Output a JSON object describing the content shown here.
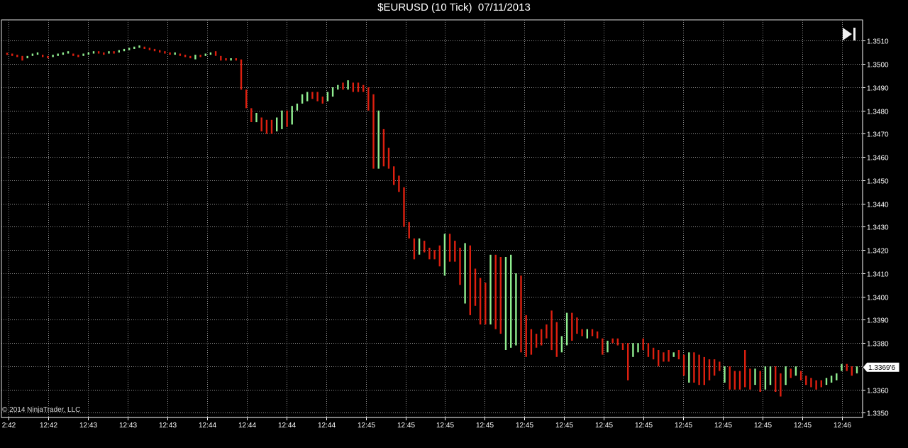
{
  "title": "$EURUSD (10 Tick)  07/11/2013",
  "copyright": "© 2014 NinjaTrader, LLC",
  "last_price_label": "1.3369'6",
  "colors": {
    "up": "#90ee90",
    "down": "#dd1f0f",
    "grid": "#c8c8c8",
    "axis": "#ffffff",
    "background": "#000000"
  },
  "icons": {
    "navigate": "scroll-to-end-icon"
  },
  "chart_data": {
    "type": "bar",
    "style": "OHLC range bars",
    "title": "$EURUSD (10 Tick)  07/11/2013",
    "ylim": [
      1.3348,
      1.3519
    ],
    "y_ticks": [
      "1.3350",
      "1.3360",
      "1.3370",
      "1.3380",
      "1.3390",
      "1.3400",
      "1.3410",
      "1.3420",
      "1.3430",
      "1.3440",
      "1.3450",
      "1.3460",
      "1.3470",
      "1.3480",
      "1.3490",
      "1.3500",
      "1.3510"
    ],
    "x_ticks": [
      "2:42",
      "12:42",
      "12:43",
      "12:43",
      "12:43",
      "12:44",
      "12:44",
      "12:44",
      "12:44",
      "12:45",
      "12:45",
      "12:45",
      "12:45",
      "12:45",
      "12:45",
      "12:45",
      "12:45",
      "12:45",
      "12:45",
      "12:45",
      "12:45",
      "12:46"
    ],
    "grid": true,
    "last_price": 1.33696,
    "bars": [
      {
        "low": 1.3504,
        "high": 1.35048,
        "dir": "down"
      },
      {
        "low": 1.35035,
        "high": 1.35045,
        "dir": "down"
      },
      {
        "low": 1.3503,
        "high": 1.3504,
        "dir": "down"
      },
      {
        "low": 1.35015,
        "high": 1.35035,
        "dir": "down"
      },
      {
        "low": 1.35025,
        "high": 1.35035,
        "dir": "up"
      },
      {
        "low": 1.35035,
        "high": 1.35045,
        "dir": "up"
      },
      {
        "low": 1.3504,
        "high": 1.3505,
        "dir": "up"
      },
      {
        "low": 1.3503,
        "high": 1.3504,
        "dir": "down"
      },
      {
        "low": 1.35025,
        "high": 1.35035,
        "dir": "down"
      },
      {
        "low": 1.3503,
        "high": 1.3504,
        "dir": "up"
      },
      {
        "low": 1.35035,
        "high": 1.35045,
        "dir": "up"
      },
      {
        "low": 1.3504,
        "high": 1.3505,
        "dir": "up"
      },
      {
        "low": 1.35045,
        "high": 1.35055,
        "dir": "up"
      },
      {
        "low": 1.35035,
        "high": 1.35045,
        "dir": "down"
      },
      {
        "low": 1.3503,
        "high": 1.3504,
        "dir": "down"
      },
      {
        "low": 1.35035,
        "high": 1.35045,
        "dir": "up"
      },
      {
        "low": 1.3504,
        "high": 1.3505,
        "dir": "up"
      },
      {
        "low": 1.35045,
        "high": 1.35055,
        "dir": "up"
      },
      {
        "low": 1.35045,
        "high": 1.35055,
        "dir": "down"
      },
      {
        "low": 1.3504,
        "high": 1.3505,
        "dir": "down"
      },
      {
        "low": 1.35045,
        "high": 1.35055,
        "dir": "up"
      },
      {
        "low": 1.35045,
        "high": 1.35055,
        "dir": "down"
      },
      {
        "low": 1.3505,
        "high": 1.3506,
        "dir": "up"
      },
      {
        "low": 1.35055,
        "high": 1.35065,
        "dir": "up"
      },
      {
        "low": 1.3506,
        "high": 1.3507,
        "dir": "up"
      },
      {
        "low": 1.35065,
        "high": 1.35075,
        "dir": "up"
      },
      {
        "low": 1.3507,
        "high": 1.3508,
        "dir": "up"
      },
      {
        "low": 1.35065,
        "high": 1.35075,
        "dir": "down"
      },
      {
        "low": 1.3506,
        "high": 1.3507,
        "dir": "down"
      },
      {
        "low": 1.35055,
        "high": 1.35065,
        "dir": "down"
      },
      {
        "low": 1.3505,
        "high": 1.3506,
        "dir": "down"
      },
      {
        "low": 1.35045,
        "high": 1.35055,
        "dir": "down"
      },
      {
        "low": 1.3504,
        "high": 1.3505,
        "dir": "down"
      },
      {
        "low": 1.3504,
        "high": 1.3505,
        "dir": "up"
      },
      {
        "low": 1.35035,
        "high": 1.35045,
        "dir": "down"
      },
      {
        "low": 1.3503,
        "high": 1.3504,
        "dir": "down"
      },
      {
        "low": 1.35025,
        "high": 1.35035,
        "dir": "down"
      },
      {
        "low": 1.3502,
        "high": 1.3504,
        "dir": "up"
      },
      {
        "low": 1.3503,
        "high": 1.3504,
        "dir": "down"
      },
      {
        "low": 1.35035,
        "high": 1.35045,
        "dir": "up"
      },
      {
        "low": 1.3504,
        "high": 1.3505,
        "dir": "up"
      },
      {
        "low": 1.35035,
        "high": 1.35055,
        "dir": "down"
      },
      {
        "low": 1.35015,
        "high": 1.35035,
        "dir": "down"
      },
      {
        "low": 1.35015,
        "high": 1.35025,
        "dir": "down"
      },
      {
        "low": 1.35015,
        "high": 1.35025,
        "dir": "up"
      },
      {
        "low": 1.35015,
        "high": 1.35025,
        "dir": "down"
      },
      {
        "low": 1.3489,
        "high": 1.3502,
        "dir": "down"
      },
      {
        "low": 1.3481,
        "high": 1.3489,
        "dir": "down"
      },
      {
        "low": 1.3475,
        "high": 1.3481,
        "dir": "down"
      },
      {
        "low": 1.3475,
        "high": 1.3479,
        "dir": "up"
      },
      {
        "low": 1.3471,
        "high": 1.3477,
        "dir": "down"
      },
      {
        "low": 1.347,
        "high": 1.3476,
        "dir": "down"
      },
      {
        "low": 1.347,
        "high": 1.3476,
        "dir": "down"
      },
      {
        "low": 1.3471,
        "high": 1.3477,
        "dir": "up"
      },
      {
        "low": 1.3472,
        "high": 1.348,
        "dir": "up"
      },
      {
        "low": 1.3473,
        "high": 1.348,
        "dir": "down"
      },
      {
        "low": 1.3474,
        "high": 1.3482,
        "dir": "up"
      },
      {
        "low": 1.348,
        "high": 1.3483,
        "dir": "up"
      },
      {
        "low": 1.3483,
        "high": 1.3487,
        "dir": "up"
      },
      {
        "low": 1.3484,
        "high": 1.3488,
        "dir": "up"
      },
      {
        "low": 1.3485,
        "high": 1.3488,
        "dir": "down"
      },
      {
        "low": 1.3484,
        "high": 1.3488,
        "dir": "down"
      },
      {
        "low": 1.3483,
        "high": 1.3486,
        "dir": "down"
      },
      {
        "low": 1.3484,
        "high": 1.3488,
        "dir": "up"
      },
      {
        "low": 1.3486,
        "high": 1.349,
        "dir": "up"
      },
      {
        "low": 1.3489,
        "high": 1.3491,
        "dir": "up"
      },
      {
        "low": 1.3489,
        "high": 1.3492,
        "dir": "down"
      },
      {
        "low": 1.3489,
        "high": 1.3493,
        "dir": "up"
      },
      {
        "low": 1.3488,
        "high": 1.3492,
        "dir": "down"
      },
      {
        "low": 1.3488,
        "high": 1.3492,
        "dir": "down"
      },
      {
        "low": 1.3488,
        "high": 1.3491,
        "dir": "down"
      },
      {
        "low": 1.348,
        "high": 1.349,
        "dir": "down"
      },
      {
        "low": 1.3455,
        "high": 1.3487,
        "dir": "down"
      },
      {
        "low": 1.3455,
        "high": 1.348,
        "dir": "up"
      },
      {
        "low": 1.3456,
        "high": 1.3472,
        "dir": "down"
      },
      {
        "low": 1.3455,
        "high": 1.3464,
        "dir": "down"
      },
      {
        "low": 1.3448,
        "high": 1.3456,
        "dir": "down"
      },
      {
        "low": 1.3445,
        "high": 1.3452,
        "dir": "down"
      },
      {
        "low": 1.343,
        "high": 1.3447,
        "dir": "down"
      },
      {
        "low": 1.3425,
        "high": 1.3432,
        "dir": "down"
      },
      {
        "low": 1.3416,
        "high": 1.3425,
        "dir": "down"
      },
      {
        "low": 1.3418,
        "high": 1.3425,
        "dir": "up"
      },
      {
        "low": 1.3419,
        "high": 1.3424,
        "dir": "down"
      },
      {
        "low": 1.3416,
        "high": 1.3421,
        "dir": "down"
      },
      {
        "low": 1.3416,
        "high": 1.342,
        "dir": "down"
      },
      {
        "low": 1.3413,
        "high": 1.3422,
        "dir": "down"
      },
      {
        "low": 1.3409,
        "high": 1.3427,
        "dir": "up"
      },
      {
        "low": 1.3415,
        "high": 1.3427,
        "dir": "down"
      },
      {
        "low": 1.3415,
        "high": 1.3424,
        "dir": "down"
      },
      {
        "low": 1.3405,
        "high": 1.3421,
        "dir": "down"
      },
      {
        "low": 1.3397,
        "high": 1.3423,
        "dir": "up"
      },
      {
        "low": 1.3392,
        "high": 1.3422,
        "dir": "down"
      },
      {
        "low": 1.3396,
        "high": 1.3412,
        "dir": "down"
      },
      {
        "low": 1.3388,
        "high": 1.3408,
        "dir": "down"
      },
      {
        "low": 1.3388,
        "high": 1.3406,
        "dir": "down"
      },
      {
        "low": 1.3388,
        "high": 1.3418,
        "dir": "up"
      },
      {
        "low": 1.3386,
        "high": 1.3418,
        "dir": "down"
      },
      {
        "low": 1.3384,
        "high": 1.3417,
        "dir": "down"
      },
      {
        "low": 1.3377,
        "high": 1.3417,
        "dir": "up"
      },
      {
        "low": 1.3378,
        "high": 1.3418,
        "dir": "up"
      },
      {
        "low": 1.3379,
        "high": 1.341,
        "dir": "up"
      },
      {
        "low": 1.3376,
        "high": 1.3409,
        "dir": "down"
      },
      {
        "low": 1.3374,
        "high": 1.3392,
        "dir": "down"
      },
      {
        "low": 1.3375,
        "high": 1.3386,
        "dir": "down"
      },
      {
        "low": 1.3378,
        "high": 1.3384,
        "dir": "down"
      },
      {
        "low": 1.3379,
        "high": 1.3386,
        "dir": "down"
      },
      {
        "low": 1.3382,
        "high": 1.3388,
        "dir": "down"
      },
      {
        "low": 1.3377,
        "high": 1.3394,
        "dir": "down"
      },
      {
        "low": 1.3374,
        "high": 1.3389,
        "dir": "down"
      },
      {
        "low": 1.3376,
        "high": 1.3383,
        "dir": "up"
      },
      {
        "low": 1.3379,
        "high": 1.3393,
        "dir": "up"
      },
      {
        "low": 1.3381,
        "high": 1.3393,
        "dir": "down"
      },
      {
        "low": 1.3384,
        "high": 1.3391,
        "dir": "down"
      },
      {
        "low": 1.3383,
        "high": 1.3386,
        "dir": "down"
      },
      {
        "low": 1.3382,
        "high": 1.3386,
        "dir": "up"
      },
      {
        "low": 1.3383,
        "high": 1.3386,
        "dir": "down"
      },
      {
        "low": 1.3382,
        "high": 1.3385,
        "dir": "down"
      },
      {
        "low": 1.3375,
        "high": 1.3382,
        "dir": "down"
      },
      {
        "low": 1.3376,
        "high": 1.3381,
        "dir": "up"
      },
      {
        "low": 1.338,
        "high": 1.3382,
        "dir": "down"
      },
      {
        "low": 1.3379,
        "high": 1.3382,
        "dir": "down"
      },
      {
        "low": 1.3377,
        "high": 1.338,
        "dir": "down"
      },
      {
        "low": 1.3364,
        "high": 1.338,
        "dir": "down"
      },
      {
        "low": 1.3374,
        "high": 1.338,
        "dir": "up"
      },
      {
        "low": 1.3376,
        "high": 1.338,
        "dir": "up"
      },
      {
        "low": 1.3377,
        "high": 1.3382,
        "dir": "down"
      },
      {
        "low": 1.3374,
        "high": 1.338,
        "dir": "down"
      },
      {
        "low": 1.3373,
        "high": 1.3378,
        "dir": "down"
      },
      {
        "low": 1.337,
        "high": 1.3377,
        "dir": "down"
      },
      {
        "low": 1.3372,
        "high": 1.3376,
        "dir": "down"
      },
      {
        "low": 1.3372,
        "high": 1.3377,
        "dir": "down"
      },
      {
        "low": 1.3374,
        "high": 1.3376,
        "dir": "up"
      },
      {
        "low": 1.3373,
        "high": 1.3377,
        "dir": "down"
      },
      {
        "low": 1.3366,
        "high": 1.3375,
        "dir": "down"
      },
      {
        "low": 1.3363,
        "high": 1.3376,
        "dir": "up"
      },
      {
        "low": 1.3363,
        "high": 1.3376,
        "dir": "down"
      },
      {
        "low": 1.3362,
        "high": 1.3375,
        "dir": "down"
      },
      {
        "low": 1.3362,
        "high": 1.3374,
        "dir": "down"
      },
      {
        "low": 1.3364,
        "high": 1.3373,
        "dir": "down"
      },
      {
        "low": 1.3366,
        "high": 1.3373,
        "dir": "down"
      },
      {
        "low": 1.3368,
        "high": 1.3372,
        "dir": "down"
      },
      {
        "low": 1.3363,
        "high": 1.337,
        "dir": "up"
      },
      {
        "low": 1.336,
        "high": 1.337,
        "dir": "down"
      },
      {
        "low": 1.336,
        "high": 1.3368,
        "dir": "down"
      },
      {
        "low": 1.336,
        "high": 1.3368,
        "dir": "down"
      },
      {
        "low": 1.3361,
        "high": 1.3377,
        "dir": "down"
      },
      {
        "low": 1.336,
        "high": 1.3369,
        "dir": "down"
      },
      {
        "low": 1.3362,
        "high": 1.3369,
        "dir": "up"
      },
      {
        "low": 1.3359,
        "high": 1.3368,
        "dir": "down"
      },
      {
        "low": 1.336,
        "high": 1.337,
        "dir": "up"
      },
      {
        "low": 1.3362,
        "high": 1.337,
        "dir": "up"
      },
      {
        "low": 1.3359,
        "high": 1.337,
        "dir": "down"
      },
      {
        "low": 1.3357,
        "high": 1.3367,
        "dir": "down"
      },
      {
        "low": 1.3362,
        "high": 1.337,
        "dir": "up"
      },
      {
        "low": 1.3365,
        "high": 1.3369,
        "dir": "down"
      },
      {
        "low": 1.3366,
        "high": 1.337,
        "dir": "up"
      },
      {
        "low": 1.3364,
        "high": 1.3368,
        "dir": "down"
      },
      {
        "low": 1.3362,
        "high": 1.3366,
        "dir": "down"
      },
      {
        "low": 1.3361,
        "high": 1.3365,
        "dir": "down"
      },
      {
        "low": 1.336,
        "high": 1.3364,
        "dir": "down"
      },
      {
        "low": 1.3361,
        "high": 1.3364,
        "dir": "down"
      },
      {
        "low": 1.3362,
        "high": 1.3365,
        "dir": "up"
      },
      {
        "low": 1.3363,
        "high": 1.3366,
        "dir": "up"
      },
      {
        "low": 1.3364,
        "high": 1.3367,
        "dir": "up"
      },
      {
        "low": 1.3368,
        "high": 1.3371,
        "dir": "up"
      },
      {
        "low": 1.3368,
        "high": 1.3371,
        "dir": "down"
      },
      {
        "low": 1.3366,
        "high": 1.337,
        "dir": "down"
      },
      {
        "low": 1.3367,
        "high": 1.337,
        "dir": "up"
      }
    ]
  }
}
